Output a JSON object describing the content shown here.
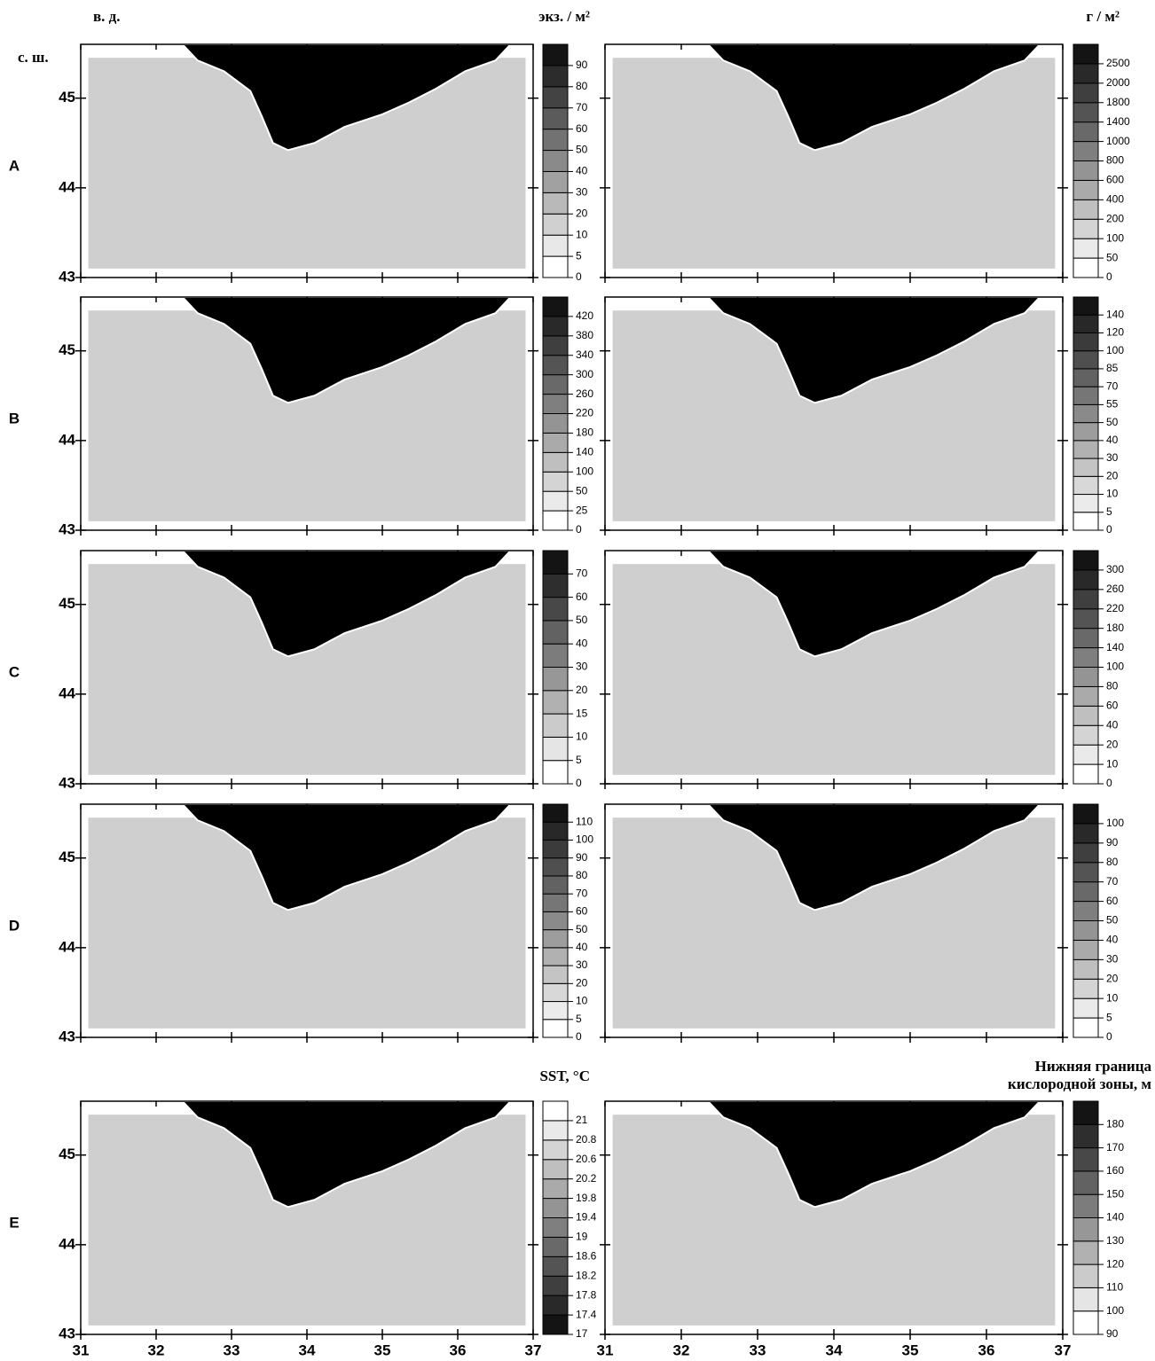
{
  "chart_data": {
    "type": "contour-map",
    "lon_label": "в. д.",
    "lat_label": "с. ш.",
    "left_unit": "экз. / м²",
    "right_unit": "г / м²",
    "sst_unit": "SST, °C",
    "oxy_unit_line1": "Нижняя граница",
    "oxy_unit_line2": "кислородной зоны, м",
    "xlim": [
      31,
      37
    ],
    "ylim": [
      43,
      45.6
    ],
    "xticks": [
      31,
      32,
      33,
      34,
      35,
      36,
      37
    ],
    "yticks": [
      43,
      44,
      45
    ],
    "rows": [
      {
        "label": "A",
        "left": {
          "levels": [
            0,
            5,
            10,
            20,
            30,
            40,
            50,
            60,
            70,
            80,
            90
          ]
        },
        "right": {
          "levels": [
            0,
            50,
            100,
            200,
            400,
            600,
            800,
            1000,
            1400,
            1800,
            2000,
            2500
          ]
        }
      },
      {
        "label": "B",
        "left": {
          "levels": [
            0,
            25,
            50,
            100,
            140,
            180,
            220,
            260,
            300,
            340,
            380,
            420
          ]
        },
        "right": {
          "levels": [
            0,
            5,
            10,
            20,
            30,
            40,
            50,
            55,
            70,
            85,
            100,
            120,
            140
          ]
        }
      },
      {
        "label": "C",
        "left": {
          "levels": [
            0,
            5,
            10,
            15,
            20,
            30,
            40,
            50,
            60,
            70
          ]
        },
        "right": {
          "levels": [
            0,
            10,
            20,
            40,
            60,
            80,
            100,
            140,
            180,
            220,
            260,
            300
          ]
        }
      },
      {
        "label": "D",
        "left": {
          "levels": [
            0,
            5,
            10,
            20,
            30,
            40,
            50,
            60,
            70,
            80,
            90,
            100,
            110
          ]
        },
        "right": {
          "levels": [
            0,
            5,
            10,
            20,
            30,
            40,
            50,
            60,
            70,
            80,
            90,
            100
          ]
        }
      },
      {
        "label": "E",
        "left": {
          "levels": [
            17,
            17.4,
            17.8,
            18.2,
            18.6,
            19,
            19.4,
            19.8,
            20.2,
            20.6,
            20.8,
            21
          ],
          "reverse": true
        },
        "right": {
          "levels": [
            90,
            100,
            110,
            120,
            130,
            140,
            150,
            160,
            170,
            180
          ]
        }
      }
    ]
  }
}
